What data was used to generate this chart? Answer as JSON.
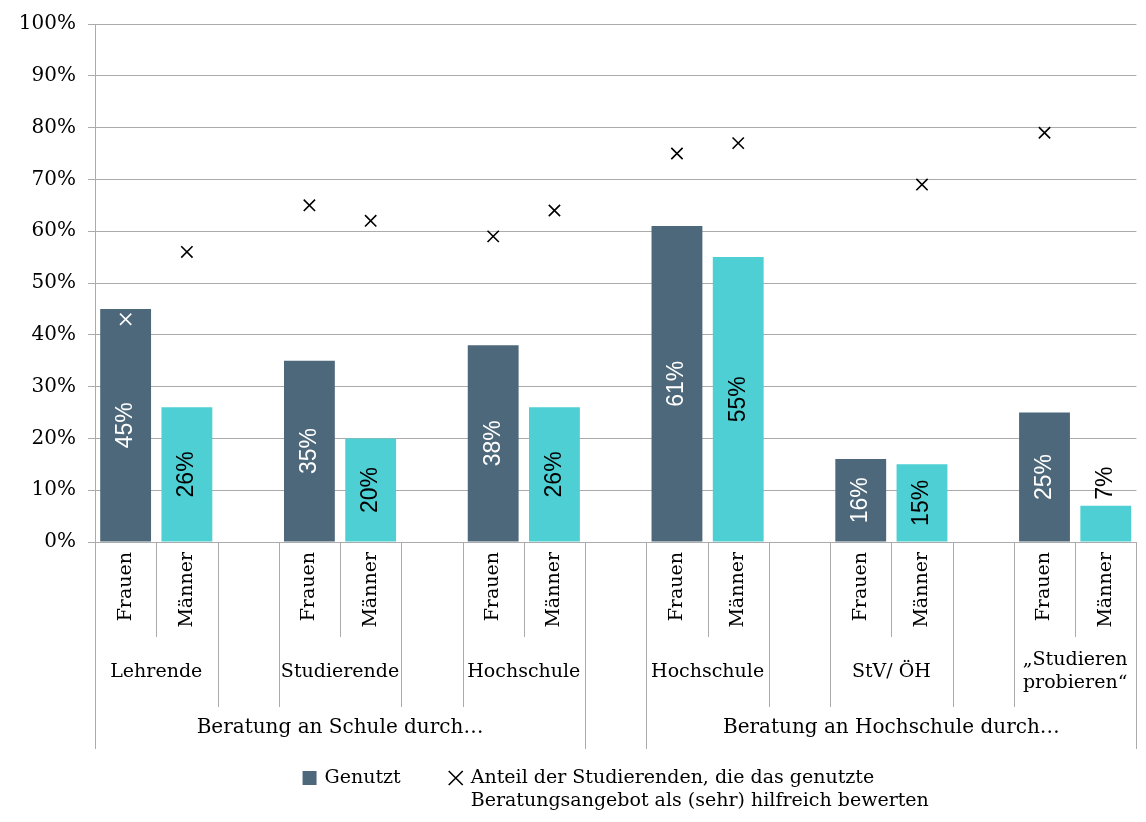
{
  "chart_data": {
    "type": "bar",
    "categories": [
      "Frauen",
      "Männer",
      null,
      "Frauen",
      "Männer",
      null,
      "Frauen",
      "Männer",
      null,
      "Frauen",
      "Männer",
      null,
      "Frauen",
      "Männer",
      null,
      "Frauen",
      "Männer"
    ],
    "series": [
      {
        "name": "Genutzt",
        "color": "#4d687b",
        "colors": [
          "#4d687b",
          "#4ecfd3",
          null,
          "#4d687b",
          "#4ecfd3",
          null,
          "#4d687b",
          "#4ecfd3",
          null,
          "#4d687b",
          "#4ecfd3",
          null,
          "#4d687b",
          "#4ecfd3",
          null,
          "#4d687b",
          "#4ecfd3"
        ],
        "values": [
          45,
          26,
          null,
          35,
          20,
          null,
          38,
          26,
          null,
          61,
          55,
          null,
          16,
          15,
          null,
          25,
          7
        ],
        "value_labels": [
          "45%",
          "26%",
          null,
          "35%",
          "20%",
          null,
          "38%",
          "26%",
          null,
          "61%",
          "55%",
          null,
          "16%",
          "15%",
          null,
          "25%",
          "7%"
        ]
      },
      {
        "name": "Anteil der Studierenden, die das genutzte Beratungsangebot als (sehr) hilfreich bewerten",
        "type": "scatter",
        "marker": "cross",
        "color": "#000000",
        "colors": [
          "#ffffff",
          "#000000",
          null,
          "#000000",
          "#000000",
          null,
          "#000000",
          "#000000",
          null,
          "#000000",
          "#000000",
          null,
          null,
          "#000000",
          null,
          "#000000",
          null
        ],
        "values": [
          43,
          56,
          null,
          65,
          62,
          null,
          59,
          64,
          null,
          75,
          77,
          null,
          null,
          69,
          null,
          79,
          null
        ]
      }
    ],
    "ylim": [
      0,
      100
    ],
    "yticks": [
      {
        "value": 0,
        "label": "0%"
      },
      {
        "value": 10,
        "label": "10%"
      },
      {
        "value": 20,
        "label": "20%"
      },
      {
        "value": 30,
        "label": "30%"
      },
      {
        "value": 40,
        "label": "40%"
      },
      {
        "value": 50,
        "label": "50%"
      },
      {
        "value": 60,
        "label": "60%"
      },
      {
        "value": 70,
        "label": "70%"
      },
      {
        "value": 80,
        "label": "80%"
      },
      {
        "value": 90,
        "label": "90%"
      },
      {
        "value": 100,
        "label": "100%"
      }
    ],
    "grid": "y",
    "legend": "bottom",
    "annotations": [
      "Lehrende",
      "Studierende",
      "Hochschule",
      "Hochschule",
      "StV/ ÖH",
      "„Studieren probieren“",
      "Beratung an Schule durch…",
      "Beratung an Hochschule durch…"
    ]
  }
}
